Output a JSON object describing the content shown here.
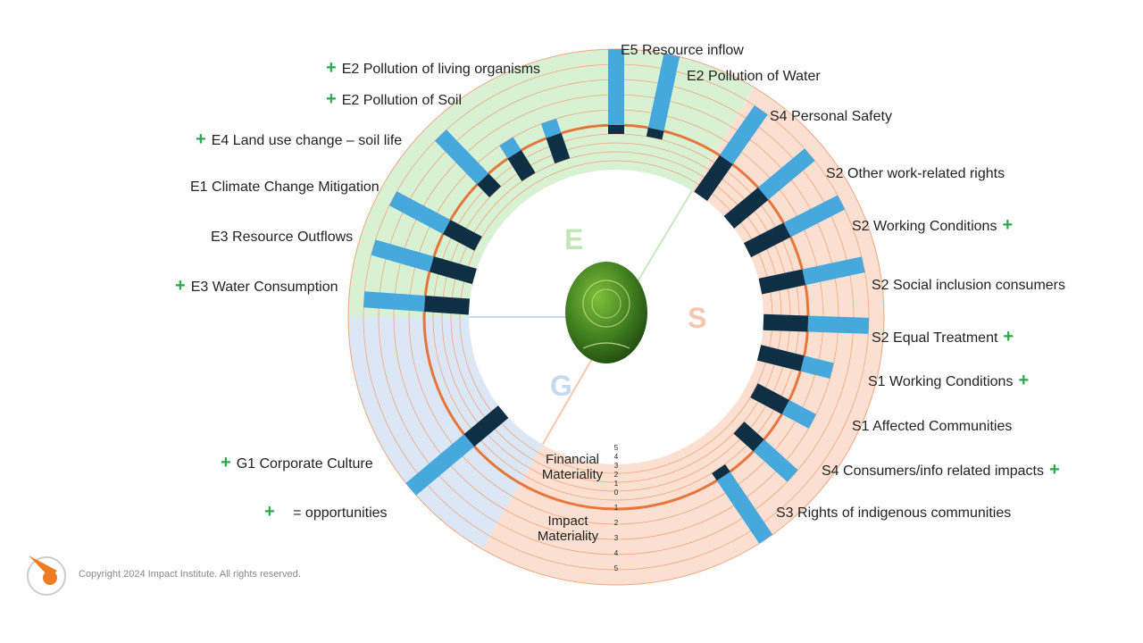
{
  "segments": {
    "environment_letter": "E",
    "social_letter": "S",
    "governance_letter": "G",
    "colors": {
      "environment": "#d9f1d3",
      "social": "#fbe0d2",
      "governance": "#dbe7f5",
      "accent_line": "#e8763a",
      "financial_bar": "#0f2f45",
      "impact_bar": "#47a8dd"
    }
  },
  "topics": [
    {
      "id": "e3wc",
      "label": "E3 Water Consumption",
      "opportunity": true,
      "financial": 5,
      "impact": 4
    },
    {
      "id": "e3ro",
      "label": "E3 Resource Outflows",
      "opportunity": false,
      "financial": 5,
      "impact": 4
    },
    {
      "id": "e1cc",
      "label": "E1 Climate Change Mitigation",
      "opportunity": false,
      "financial": 4,
      "impact": 4
    },
    {
      "id": "e4lu",
      "label": "E4 Land use change – soil life",
      "opportunity": true,
      "financial": 2,
      "impact": 4
    },
    {
      "id": "e2ps",
      "label": "E2 Pollution of Soil",
      "opportunity": true,
      "financial": 3,
      "impact": 1
    },
    {
      "id": "e2plo",
      "label": "E2 Pollution of living organisms",
      "opportunity": true,
      "financial": 3,
      "impact": 1
    },
    {
      "id": "e5ri",
      "label": "E5 Resource inflow",
      "opportunity": false,
      "financial": 1,
      "impact": 5
    },
    {
      "id": "e2pw",
      "label": "E2 Pollution of Water",
      "opportunity": false,
      "financial": 1,
      "impact": 5
    },
    {
      "id": "s4ps",
      "label": "S4 Personal Safety",
      "opportunity": false,
      "financial": 5,
      "impact": 4
    },
    {
      "id": "s2ow",
      "label": "S2 Other work-related rights",
      "opportunity": false,
      "financial": 5,
      "impact": 4
    },
    {
      "id": "s2wc",
      "label": "S2 Working Conditions",
      "opportunity": true,
      "financial": 5,
      "impact": 4
    },
    {
      "id": "s2si",
      "label": "S2 Social inclusion consumers",
      "opportunity": false,
      "financial": 5,
      "impact": 4
    },
    {
      "id": "s2et",
      "label": "S2 Equal Treatment",
      "opportunity": true,
      "financial": 5,
      "impact": 4
    },
    {
      "id": "s1wc",
      "label": "S1 Working Conditions",
      "opportunity": true,
      "financial": 5,
      "impact": 2
    },
    {
      "id": "s1ac",
      "label": "S1 Affected Communities",
      "opportunity": false,
      "financial": 4,
      "impact": 2
    },
    {
      "id": "s4ci",
      "label": "S4 Consumers/info related impacts",
      "opportunity": true,
      "financial": 3,
      "impact": 3
    },
    {
      "id": "s3ri",
      "label": "S3 Rights of indigenous communities",
      "opportunity": false,
      "financial": 1,
      "impact": 5
    },
    {
      "id": "g1cc",
      "label": "G1 Corporate Culture",
      "opportunity": true,
      "financial": 5,
      "impact": 5
    }
  ],
  "axis": {
    "financial_label_1": "Financial",
    "financial_label_2": "Materiality",
    "impact_label_1": "Impact",
    "impact_label_2": "Materiality",
    "financial_ticks": [
      "5",
      "4",
      "3",
      "2",
      "1",
      "0"
    ],
    "impact_ticks": [
      "1",
      "2",
      "3",
      "4",
      "5"
    ]
  },
  "legend": {
    "plus": "+",
    "text": "= opportunities"
  },
  "center_image": {
    "name": "csrd-academy-egg"
  },
  "footer": {
    "copyright": "Copyright 2024 Impact Institute. All rights reserved."
  }
}
